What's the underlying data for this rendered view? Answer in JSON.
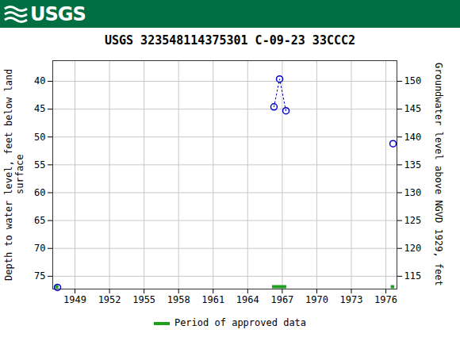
{
  "chart_data": {
    "type": "scatter",
    "banner": "USGS",
    "title": "USGS 323548114375301 C-09-23 33CCC2",
    "y_label": "Depth to water level, feet below land surface",
    "y2_label": "Groundwater level above NGVD 1929, feet",
    "x": [
      1947.48,
      1947.48,
      1966.28,
      1966.77,
      1967.32,
      1967.32,
      1976.62
    ],
    "values": [
      77.0,
      null,
      44.6,
      39.6,
      45.3,
      null,
      51.2
    ],
    "color": "#0000cc",
    "marker": "circle",
    "line_style": "dotted",
    "approved_periods": {
      "label": "Period of approved data",
      "color": "#1f9e1f",
      "ranges": [
        [
          1947.3,
          1947.6
        ],
        [
          1966.14,
          1967.38
        ],
        [
          1976.45,
          1976.75
        ]
      ]
    },
    "legend": "bottom",
    "xlim": [
      1947.07,
      1976.96
    ],
    "xticks": [
      1949,
      1952,
      1955,
      1958,
      1961,
      1964,
      1967,
      1970,
      1973,
      1976
    ],
    "ylim": [
      77.3,
      36.3
    ],
    "yticks": [
      40,
      45,
      50,
      55,
      60,
      65,
      70,
      75
    ],
    "y2lim": [
      112.7,
      153.7
    ],
    "y2ticks": [
      115,
      120,
      125,
      130,
      135,
      140,
      145,
      150
    ],
    "grid": true
  }
}
